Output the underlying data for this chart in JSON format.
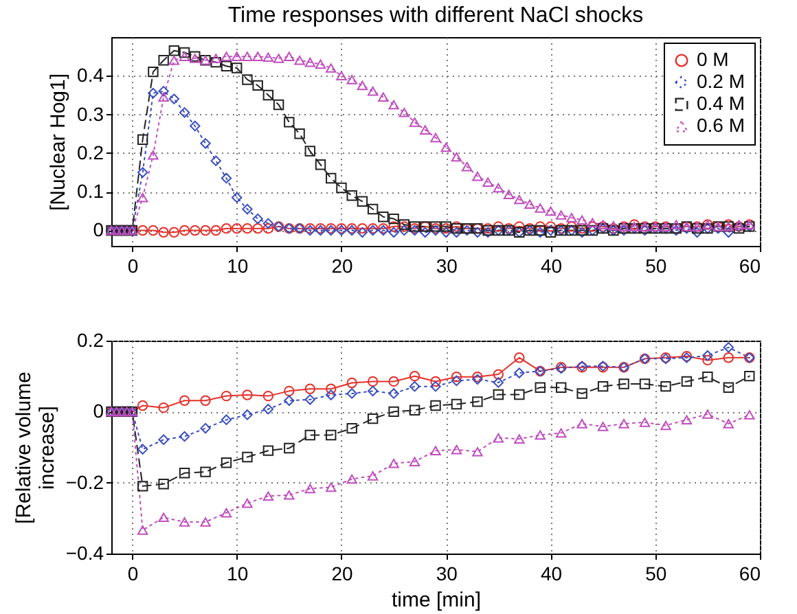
{
  "chart_data": [
    {
      "type": "line",
      "title": "Time responses with different NaCl shocks",
      "ylabel": "[Nuclear Hog1]",
      "xlim": [
        -2,
        60
      ],
      "xticks": [
        0,
        10,
        20,
        30,
        40,
        50,
        60
      ],
      "ylim": [
        -0.04,
        0.5
      ],
      "yticks": [
        0,
        0.1,
        0.2,
        0.3,
        0.4
      ],
      "grid": true,
      "legend": "top right",
      "x": [
        -2,
        -1.5,
        -1,
        -0.5,
        0,
        1,
        2,
        3,
        4,
        5,
        6,
        7,
        8,
        9,
        10,
        11,
        12,
        13,
        14,
        15,
        16,
        17,
        18,
        19,
        20,
        21,
        22,
        23,
        24,
        25,
        26,
        27,
        28,
        29,
        30,
        31,
        32,
        33,
        34,
        35,
        36,
        37,
        38,
        39,
        40,
        41,
        42,
        43,
        44,
        45,
        46,
        47,
        48,
        49,
        50,
        51,
        52,
        53,
        54,
        55,
        56,
        57,
        58,
        59
      ],
      "series": [
        {
          "name": "0 M",
          "color": "#e5302a",
          "marker": "circle",
          "line_style": "solid",
          "values": [
            0,
            0,
            0,
            0,
            0,
            0,
            0,
            -0.005,
            -0.005,
            0,
            0,
            0,
            0,
            0.005,
            0.005,
            0.005,
            0.005,
            0.005,
            0.01,
            0.005,
            0.005,
            0.005,
            0.005,
            0.005,
            0.005,
            0.005,
            0.005,
            0.005,
            0.005,
            0.01,
            0.01,
            0.005,
            0.01,
            0.005,
            0.005,
            0.01,
            0.005,
            0.005,
            0.005,
            0.01,
            0.005,
            0.01,
            0.005,
            0.01,
            0.01,
            0.005,
            0.01,
            0.005,
            0.01,
            0.01,
            0.005,
            0.01,
            0.015,
            0.01,
            0.01,
            0.01,
            0.005,
            0.01,
            0.01,
            0.015,
            0.01,
            0.015,
            0.01,
            0.015
          ]
        },
        {
          "name": "0.2 M",
          "color": "#3a4fbf",
          "marker": "diamond",
          "line_style": "dotted",
          "values": [
            0,
            0,
            0,
            0,
            0,
            0.15,
            0.355,
            0.36,
            0.34,
            0.305,
            0.27,
            0.225,
            0.18,
            0.135,
            0.085,
            0.055,
            0.03,
            0.018,
            0.01,
            0.005,
            0.005,
            0,
            0,
            0,
            0,
            0,
            -0.005,
            0,
            0,
            -0.005,
            0,
            0,
            -0.005,
            0,
            -0.005,
            -0.005,
            0,
            -0.005,
            -0.005,
            0,
            0,
            -0.005,
            0,
            -0.005,
            0,
            0,
            0,
            -0.005,
            0,
            0.005,
            0,
            0,
            0.005,
            0,
            0.005,
            0.005,
            0,
            0.005,
            -0.005,
            0.005,
            0.005,
            -0.005,
            0.01,
            0.01
          ]
        },
        {
          "name": "0.4 M",
          "color": "#222222",
          "marker": "square",
          "line_style": "dashed",
          "values": [
            0,
            0,
            0,
            0,
            0,
            0.235,
            0.41,
            0.44,
            0.465,
            0.46,
            0.45,
            0.44,
            0.435,
            0.425,
            0.42,
            0.39,
            0.375,
            0.35,
            0.325,
            0.28,
            0.25,
            0.205,
            0.17,
            0.135,
            0.11,
            0.09,
            0.075,
            0.055,
            0.035,
            0.03,
            0.015,
            0.01,
            0.01,
            0.01,
            0.01,
            0.005,
            0.005,
            0.005,
            0,
            0,
            0,
            -0.005,
            0,
            0,
            -0.005,
            0,
            0,
            0,
            0,
            0.005,
            0,
            0.005,
            0.005,
            0.005,
            0.005,
            0.005,
            0.005,
            0.01,
            0.005,
            0.005,
            0.01,
            0.01,
            0.005,
            0.01
          ]
        },
        {
          "name": "0.6 M",
          "color": "#c04fbe",
          "marker": "triangle",
          "line_style": "dotted",
          "values": [
            0,
            0,
            0,
            0,
            0,
            0.085,
            0.195,
            0.345,
            0.44,
            0.45,
            0.445,
            0.44,
            0.445,
            0.45,
            0.45,
            0.45,
            0.45,
            0.448,
            0.445,
            0.45,
            0.44,
            0.435,
            0.43,
            0.42,
            0.4,
            0.39,
            0.375,
            0.36,
            0.345,
            0.325,
            0.305,
            0.28,
            0.26,
            0.24,
            0.215,
            0.19,
            0.165,
            0.14,
            0.125,
            0.11,
            0.093,
            0.08,
            0.068,
            0.058,
            0.05,
            0.04,
            0.033,
            0.027,
            0.02,
            0.015,
            0.012,
            0.01,
            0.01,
            0.01,
            0.01,
            0.01,
            0.015,
            0.01,
            0.01,
            0.015,
            0.01,
            0.01,
            0.015,
            0.015
          ]
        }
      ]
    },
    {
      "type": "line",
      "ylabel": "[Relative volume increase]",
      "xlabel": "time [min]",
      "xlim": [
        -2,
        60
      ],
      "xticks": [
        0,
        10,
        20,
        30,
        40,
        50,
        60
      ],
      "ylim": [
        -0.4,
        0.2
      ],
      "yticks": [
        -0.4,
        -0.2,
        0,
        0.2
      ],
      "grid": true,
      "x": [
        -2,
        -1.5,
        -1,
        -0.5,
        0,
        1,
        3,
        5,
        7,
        9,
        11,
        13,
        15,
        17,
        19,
        21,
        23,
        25,
        27,
        29,
        31,
        33,
        35,
        37,
        39,
        41,
        43,
        45,
        47,
        49,
        51,
        53,
        55,
        57,
        59
      ],
      "series": [
        {
          "color": "#e5302a",
          "marker": "circle",
          "line_style": "solid",
          "values": [
            0,
            0,
            0,
            0,
            0,
            0.017,
            0.011,
            0.031,
            0.031,
            0.044,
            0.047,
            0.044,
            0.058,
            0.064,
            0.064,
            0.081,
            0.085,
            0.085,
            0.1,
            0.085,
            0.098,
            0.098,
            0.105,
            0.152,
            0.114,
            0.125,
            0.125,
            0.125,
            0.125,
            0.149,
            0.152,
            0.156,
            0.145,
            0.152,
            0.152
          ]
        },
        {
          "color": "#3a4fbf",
          "marker": "diamond",
          "line_style": "dotted",
          "values": [
            0,
            0,
            0,
            0,
            0,
            -0.106,
            -0.079,
            -0.07,
            -0.047,
            -0.023,
            -0.009,
            0.007,
            0.031,
            0.034,
            0.047,
            0.051,
            0.058,
            0.051,
            0.071,
            0.071,
            0.087,
            0.091,
            0.082,
            0.109,
            0.114,
            0.122,
            0.128,
            0.128,
            0.125,
            0.149,
            0.149,
            0.152,
            0.158,
            0.181,
            0.152
          ]
        },
        {
          "color": "#222222",
          "marker": "square",
          "line_style": "dashed",
          "values": [
            0,
            0,
            0,
            0,
            0,
            -0.21,
            -0.204,
            -0.173,
            -0.17,
            -0.144,
            -0.128,
            -0.11,
            -0.103,
            -0.066,
            -0.066,
            -0.047,
            -0.02,
            0,
            0.004,
            0.017,
            0.021,
            0.028,
            0.048,
            0.048,
            0.068,
            0.068,
            0.051,
            0.071,
            0.078,
            0.078,
            0.071,
            0.085,
            0.098,
            0.068,
            0.1
          ]
        },
        {
          "color": "#c04fbe",
          "marker": "triangle",
          "line_style": "dotted",
          "values": [
            0,
            0,
            0,
            0,
            0,
            -0.334,
            -0.298,
            -0.311,
            -0.311,
            -0.285,
            -0.258,
            -0.238,
            -0.235,
            -0.217,
            -0.213,
            -0.19,
            -0.181,
            -0.146,
            -0.141,
            -0.11,
            -0.107,
            -0.113,
            -0.074,
            -0.077,
            -0.066,
            -0.06,
            -0.034,
            -0.042,
            -0.034,
            -0.03,
            -0.039,
            -0.023,
            -0.007,
            -0.034,
            -0.009
          ]
        }
      ]
    }
  ]
}
